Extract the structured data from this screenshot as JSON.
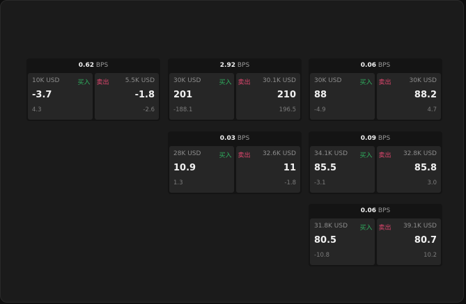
{
  "unit": "BPS",
  "buy_label": "买入",
  "sell_label": "卖出",
  "colors": {
    "buy": "#2fae5e",
    "sell": "#e0466e"
  },
  "cards": [
    {
      "spread": "0.62",
      "buy": {
        "size": "10K USD",
        "price": "-3.7",
        "change": "4.3"
      },
      "sell": {
        "size": "5.5K USD",
        "price": "-1.8",
        "change": "-2.6"
      }
    },
    {
      "spread": "2.92",
      "buy": {
        "size": "30K USD",
        "price": "201",
        "change": "-188.1"
      },
      "sell": {
        "size": "30.1K USD",
        "price": "210",
        "change": "196.5"
      }
    },
    {
      "spread": "0.06",
      "buy": {
        "size": "30K USD",
        "price": "88",
        "change": "-4.9"
      },
      "sell": {
        "size": "30K USD",
        "price": "88.2",
        "change": "4.7"
      }
    },
    {
      "spread": "0.03",
      "buy": {
        "size": "28K USD",
        "price": "10.9",
        "change": "1.3"
      },
      "sell": {
        "size": "32.6K USD",
        "price": "11",
        "change": "-1.8"
      }
    },
    {
      "spread": "0.09",
      "buy": {
        "size": "34.1K USD",
        "price": "85.5",
        "change": "-3.1"
      },
      "sell": {
        "size": "32.8K USD",
        "price": "85.8",
        "change": "3.0"
      }
    },
    {
      "spread": "0.06",
      "buy": {
        "size": "31.8K USD",
        "price": "80.5",
        "change": "-10.8"
      },
      "sell": {
        "size": "39.1K USD",
        "price": "80.7",
        "change": "10.2"
      }
    }
  ]
}
